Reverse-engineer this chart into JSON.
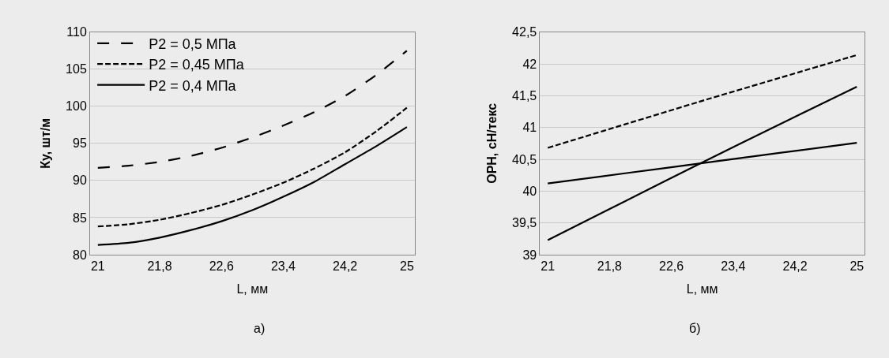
{
  "chart_data": [
    {
      "type": "line",
      "xlabel": "L, мм",
      "ylabel": "Ку, шт/м",
      "x": [
        21,
        21.4,
        21.8,
        22.2,
        22.6,
        23,
        23.4,
        23.8,
        24.2,
        24.6,
        25
      ],
      "series": [
        {
          "name": "P2 = 0,5 МПа",
          "color": "#000000",
          "line_style": "dashed",
          "values": [
            91.7,
            92.0,
            92.5,
            93.3,
            94.4,
            95.8,
            97.4,
            99.2,
            101.4,
            104.2,
            107.5
          ]
        },
        {
          "name": "P2 = 0,45 МПа",
          "color": "#000000",
          "line_style": "dotted",
          "values": [
            83.8,
            84.1,
            84.7,
            85.6,
            86.7,
            88.1,
            89.7,
            91.6,
            93.8,
            96.6,
            99.8
          ]
        },
        {
          "name": "P2 = 0,4 МПа",
          "color": "#000000",
          "line_style": "solid",
          "values": [
            81.3,
            81.6,
            82.3,
            83.3,
            84.5,
            86.0,
            87.8,
            89.8,
            92.2,
            94.6,
            97.2
          ]
        }
      ],
      "xlim": [
        20.9,
        25.1
      ],
      "xticks": [
        21,
        {
          "value": 21.8,
          "label": "21,8"
        },
        {
          "value": 22.6,
          "label": "22,6"
        },
        {
          "value": 23.4,
          "label": "23,4"
        },
        {
          "value": 24.2,
          "label": "24,2"
        },
        25
      ],
      "ylim": [
        80,
        110
      ],
      "yticks": [
        80,
        85,
        90,
        95,
        100,
        105,
        110
      ],
      "grid": "y",
      "legend": "top left",
      "marker": "none",
      "annotations": [
        "а)"
      ]
    },
    {
      "type": "line",
      "xlabel": "L, мм",
      "ylabel": "ОРН, сН/текс",
      "x": [
        21,
        22,
        23,
        24,
        25
      ],
      "series": [
        {
          "color": "#000000",
          "line_style": "dotted",
          "values": [
            40.68,
            41.05,
            41.42,
            41.78,
            42.14
          ]
        },
        {
          "color": "#000000",
          "line_style": "solid",
          "values": [
            39.23,
            39.84,
            40.45,
            41.05,
            41.64
          ]
        },
        {
          "color": "#000000",
          "line_style": "solid",
          "values": [
            40.12,
            40.28,
            40.44,
            40.6,
            40.76
          ]
        }
      ],
      "xlim": [
        20.9,
        25.1
      ],
      "xticks": [
        21,
        {
          "value": 21.8,
          "label": "21,8"
        },
        {
          "value": 22.6,
          "label": "22,6"
        },
        {
          "value": 23.4,
          "label": "23,4"
        },
        {
          "value": 24.2,
          "label": "24,2"
        },
        25
      ],
      "ylim": [
        39,
        42.5
      ],
      "yticks": [
        39,
        {
          "value": 39.5,
          "label": "39,5"
        },
        40,
        {
          "value": 40.5,
          "label": "40,5"
        },
        41,
        {
          "value": 41.5,
          "label": "41,5"
        },
        42,
        {
          "value": 42.5,
          "label": "42,5"
        }
      ],
      "grid": "y",
      "legend": false,
      "marker": "none",
      "annotations": [
        "б)"
      ]
    }
  ]
}
